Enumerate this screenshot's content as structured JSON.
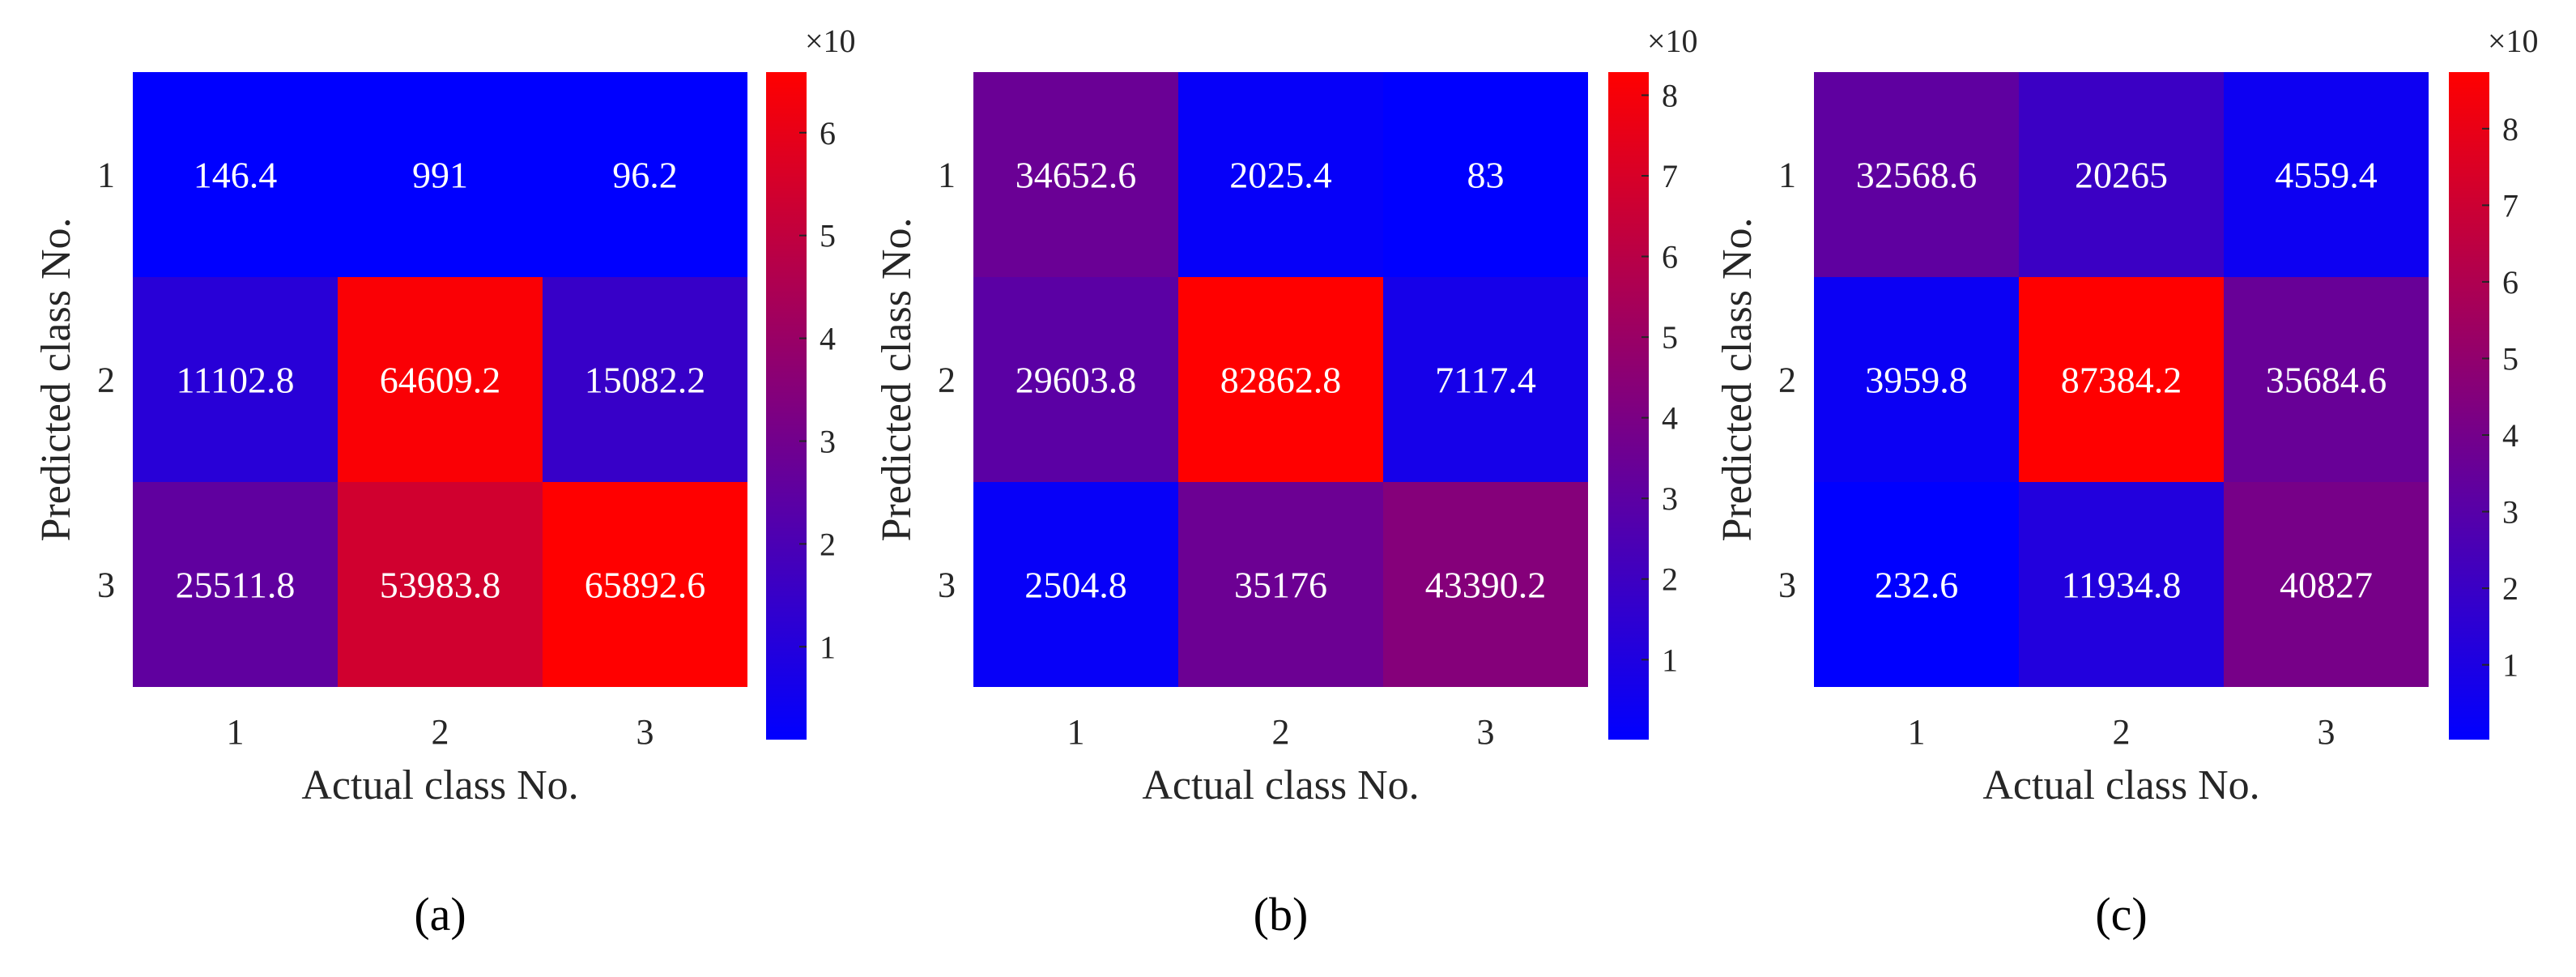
{
  "chart_data": [
    {
      "type": "heatmap",
      "panel_label": "(a)",
      "xlabel": "Actual class No.",
      "ylabel": "Predicted class No.",
      "x_ticks": [
        "1",
        "2",
        "3"
      ],
      "y_ticks": [
        "1",
        "2",
        "3"
      ],
      "cell_labels": [
        [
          "146.4",
          "991",
          "96.2"
        ],
        [
          "11102.8",
          "64609.2",
          "15082.2"
        ],
        [
          "25511.8",
          "53983.8",
          "65892.6"
        ]
      ],
      "values": [
        [
          146.4,
          991,
          96.2
        ],
        [
          11102.8,
          64609.2,
          15082.2
        ],
        [
          25511.8,
          53983.8,
          65892.6
        ]
      ],
      "colorbar": {
        "multiplier_label": "×10",
        "ticks": [
          "1",
          "2",
          "3",
          "4",
          "5",
          "6"
        ],
        "tick_values": [
          1,
          2,
          3,
          4,
          5,
          6
        ],
        "range": [
          0.0962,
          6.58926
        ],
        "colormap": [
          "#0000ff",
          "#ff0000"
        ]
      }
    },
    {
      "type": "heatmap",
      "panel_label": "(b)",
      "xlabel": "Actual class No.",
      "ylabel": "Predicted class No.",
      "x_ticks": [
        "1",
        "2",
        "3"
      ],
      "y_ticks": [
        "1",
        "2",
        "3"
      ],
      "cell_labels": [
        [
          "34652.6",
          "2025.4",
          "83"
        ],
        [
          "29603.8",
          "82862.8",
          "7117.4"
        ],
        [
          "2504.8",
          "35176",
          "43390.2"
        ]
      ],
      "values": [
        [
          34652.6,
          2025.4,
          83
        ],
        [
          29603.8,
          82862.8,
          7117.4
        ],
        [
          2504.8,
          35176,
          43390.2
        ]
      ],
      "colorbar": {
        "multiplier_label": "×10",
        "ticks": [
          "1",
          "2",
          "3",
          "4",
          "5",
          "6",
          "7",
          "8"
        ],
        "tick_values": [
          1,
          2,
          3,
          4,
          5,
          6,
          7,
          8
        ],
        "range": [
          0.0083,
          8.28628
        ],
        "colormap": [
          "#0000ff",
          "#ff0000"
        ]
      }
    },
    {
      "type": "heatmap",
      "panel_label": "(c)",
      "xlabel": "Actual class No.",
      "ylabel": "Predicted class No.",
      "x_ticks": [
        "1",
        "2",
        "3"
      ],
      "y_ticks": [
        "1",
        "2",
        "3"
      ],
      "cell_labels": [
        [
          "32568.6",
          "20265",
          "4559.4"
        ],
        [
          "3959.8",
          "87384.2",
          "35684.6"
        ],
        [
          "232.6",
          "11934.8",
          "40827"
        ]
      ],
      "values": [
        [
          32568.6,
          20265,
          4559.4
        ],
        [
          3959.8,
          87384.2,
          35684.6
        ],
        [
          232.6,
          11934.8,
          40827
        ]
      ],
      "colorbar": {
        "multiplier_label": "×10",
        "ticks": [
          "1",
          "2",
          "3",
          "4",
          "5",
          "6",
          "7",
          "8"
        ],
        "tick_values": [
          1,
          2,
          3,
          4,
          5,
          6,
          7,
          8
        ],
        "range": [
          0.02326,
          8.73842
        ],
        "colormap": [
          "#0000ff",
          "#ff0000"
        ]
      }
    }
  ]
}
